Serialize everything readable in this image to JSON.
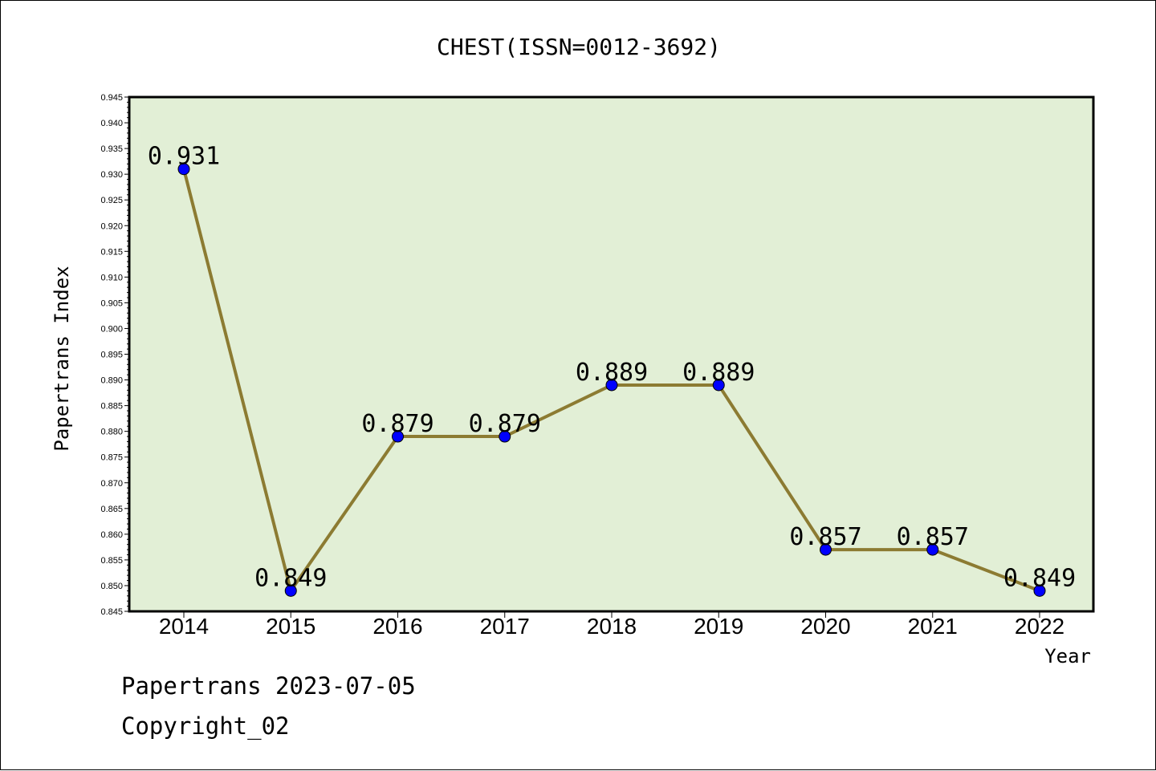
{
  "chart_data": {
    "type": "line",
    "title": "CHEST(ISSN=0012-3692)",
    "xlabel": "Year",
    "ylabel": "Papertrans Index",
    "categories": [
      "2014",
      "2015",
      "2016",
      "2017",
      "2018",
      "2019",
      "2020",
      "2021",
      "2022"
    ],
    "series": [
      {
        "values": [
          0.931,
          0.849,
          0.879,
          0.879,
          0.889,
          0.889,
          0.857,
          0.857,
          0.849
        ]
      }
    ],
    "data_labels": [
      "0.931",
      "0.849",
      "0.879",
      "0.879",
      "0.889",
      "0.889",
      "0.857",
      "0.857",
      "0.849"
    ],
    "ylim": [
      0.845,
      0.945
    ],
    "yticks": [
      "0.845",
      "0.850",
      "0.855",
      "0.860",
      "0.865",
      "0.870",
      "0.875",
      "0.880",
      "0.885",
      "0.890",
      "0.895",
      "0.900",
      "0.905",
      "0.910",
      "0.915",
      "0.920",
      "0.925",
      "0.930",
      "0.935",
      "0.940",
      "0.945"
    ],
    "grid": false,
    "colors": {
      "plot_background": "#e2efd6",
      "line": "#8c7b32",
      "marker": "#0000ff"
    }
  },
  "footer": {
    "line1": "Papertrans 2023-07-05",
    "line2": "Copyright_02"
  }
}
